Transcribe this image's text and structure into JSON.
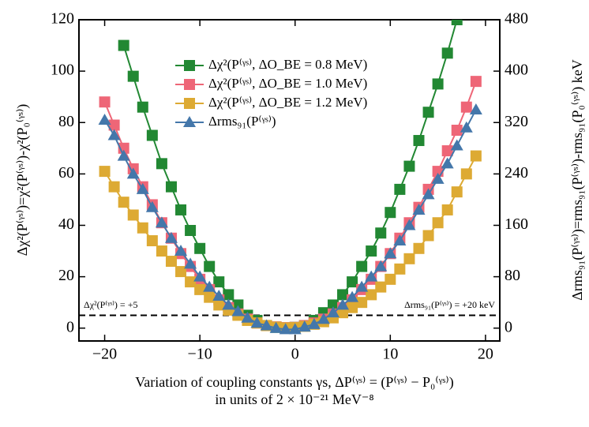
{
  "chart_data": {
    "type": "line",
    "xlabel": [
      "Variation of coupling constants γs, ΔP⁽ᵞˢ⁾ = (P⁽ᵞˢ⁾ − P₀⁽ᵞˢ⁾)",
      "in units of 2 × 10⁻²¹ MeV⁻⁸"
    ],
    "ylabel": "Δχ²(P⁽ᵞˢ⁾)=χ²(P⁽ᵞˢ⁾)-χ²(P₀⁽ᵞˢ⁾)",
    "y2label": "Δrms₉₁(P⁽ᵞˢ⁾)=rms₉₁(P⁽ᵞˢ⁾)-rms₉₁(P₀⁽ᵞˢ⁾) keV",
    "y2label_color": "#4477aa",
    "xlim": [
      -22.7,
      21.5
    ],
    "xticks": [
      {
        "value": -20,
        "label": "−20"
      },
      {
        "value": -10,
        "label": "−10"
      },
      0,
      10,
      20
    ],
    "ylim": [
      -5,
      120
    ],
    "yticks": [
      0,
      20,
      40,
      60,
      80,
      100,
      120
    ],
    "y2lim": [
      -20,
      480
    ],
    "y2ticks": [
      0,
      80,
      160,
      240,
      320,
      400,
      480
    ],
    "legend": "upper center",
    "reference_line": {
      "y": 5,
      "labels": [
        {
          "text": "Δχ²(P⁽ᵞˢ⁾) = +5",
          "color": "#000000"
        },
        {
          "text": "Δrms₉₁(P⁽ᵞˢ⁾) = +20 keV",
          "color": "#4477aa"
        }
      ]
    },
    "series": [
      {
        "name": "Δχ²(P⁽ᵞˢ⁾, ΔO_BE = 0.8 MeV)",
        "color": "#228833",
        "marker": "square",
        "x": [
          -18,
          -17,
          -16,
          -15,
          -14,
          -13,
          -12,
          -11,
          -10,
          -9,
          -8,
          -7,
          -6,
          -5,
          -4,
          -3,
          -2,
          -1,
          0,
          1,
          2,
          3,
          4,
          5,
          6,
          7,
          8,
          9,
          10,
          11,
          12,
          13,
          14,
          15,
          16,
          17
        ],
        "values": [
          110,
          98,
          86,
          75,
          64,
          55,
          46,
          38,
          31,
          24,
          18,
          13,
          9,
          5,
          3,
          1,
          0.3,
          0,
          0.3,
          1,
          3,
          6,
          9,
          13,
          18,
          24,
          30,
          37,
          45,
          54,
          63,
          73,
          84,
          95,
          107,
          120
        ]
      },
      {
        "name": "Δχ²(P⁽ᵞˢ⁾, ΔO_BE = 1.0 MeV)",
        "color": "#ee6677",
        "marker": "square",
        "x": [
          -20,
          -19,
          -18,
          -17,
          -16,
          -15,
          -14,
          -13,
          -12,
          -11,
          -10,
          -9,
          -8,
          -7,
          -6,
          -5,
          -4,
          -3,
          -2,
          -1,
          0,
          1,
          2,
          3,
          4,
          5,
          6,
          7,
          8,
          9,
          10,
          11,
          12,
          13,
          14,
          15,
          16,
          17,
          18,
          19
        ],
        "values": [
          88,
          79,
          70,
          62,
          55,
          48,
          41,
          35,
          29,
          24,
          19,
          15,
          11,
          8,
          5.5,
          3.5,
          2,
          1,
          0.5,
          0.2,
          0.3,
          1,
          2,
          3.5,
          5.5,
          8,
          11,
          15,
          19,
          24,
          29,
          35,
          41,
          47,
          54,
          61,
          69,
          77,
          86,
          96
        ]
      },
      {
        "name": "Δχ²(P⁽ᵞˢ⁾, ΔO_BE = 1.2 MeV)",
        "color": "#ddaa33",
        "marker": "square",
        "x": [
          -20,
          -19,
          -18,
          -17,
          -16,
          -15,
          -14,
          -13,
          -12,
          -11,
          -10,
          -9,
          -8,
          -7,
          -6,
          -5,
          -4,
          -3,
          -2,
          -1,
          0,
          1,
          2,
          3,
          4,
          5,
          6,
          7,
          8,
          9,
          10,
          11,
          12,
          13,
          14,
          15,
          16,
          17,
          18,
          19
        ],
        "values": [
          61,
          55,
          49,
          44,
          39,
          34,
          30,
          26,
          22,
          18,
          15,
          12,
          9,
          7,
          5,
          3,
          2,
          1,
          0.4,
          0.1,
          0.2,
          0.7,
          1.5,
          2.5,
          4,
          6,
          8,
          10,
          13,
          16,
          19,
          23,
          27,
          31,
          36,
          41,
          46,
          53,
          60,
          67
        ]
      },
      {
        "name": "Δrms₉₁(P⁽ᵞˢ⁾)",
        "color": "#4477aa",
        "marker": "triangle",
        "axis": "y2",
        "x": [
          -20,
          -19,
          -18,
          -17,
          -16,
          -15,
          -14,
          -13,
          -12,
          -11,
          -10,
          -9,
          -8,
          -7,
          -6,
          -5,
          -4,
          -3,
          -2,
          -1,
          0,
          1,
          2,
          3,
          4,
          5,
          6,
          7,
          8,
          9,
          10,
          11,
          12,
          13,
          14,
          15,
          16,
          17,
          18,
          19
        ],
        "values": [
          324,
          300,
          268,
          240,
          216,
          188,
          164,
          140,
          120,
          100,
          80,
          64,
          50,
          36,
          26,
          16,
          8,
          4,
          0,
          -2,
          -2,
          2,
          6,
          14,
          24,
          36,
          48,
          64,
          80,
          96,
          116,
          136,
          160,
          184,
          208,
          232,
          256,
          284,
          312,
          340
        ]
      }
    ]
  }
}
